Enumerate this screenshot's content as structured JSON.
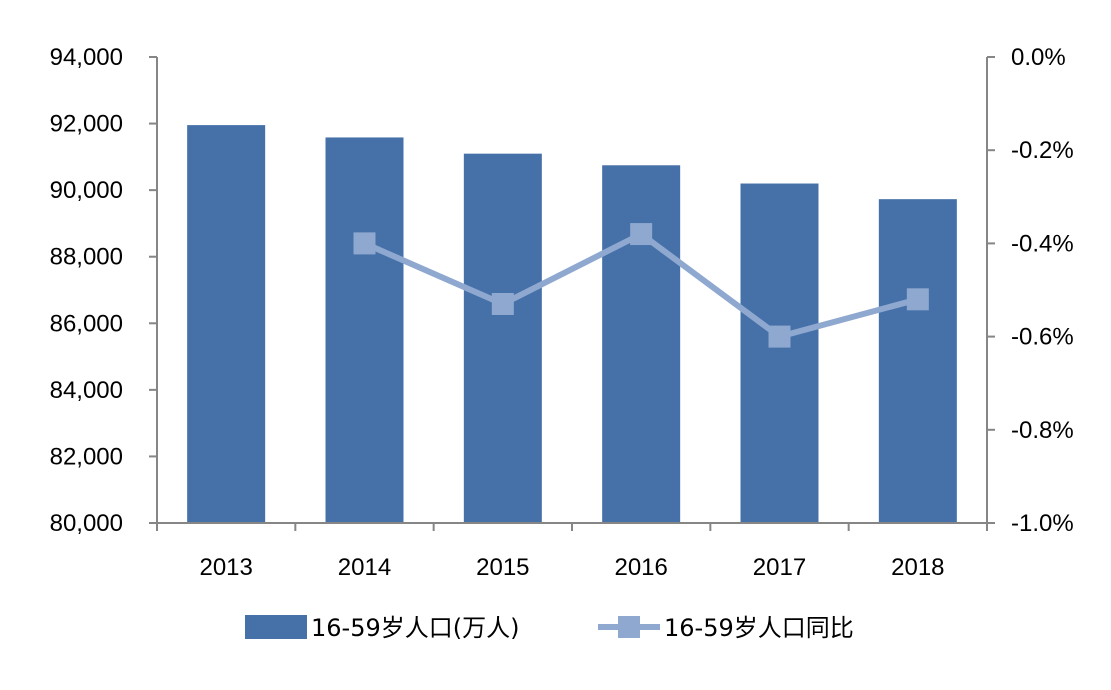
{
  "chart_data": {
    "type": "bar",
    "categories": [
      "2013",
      "2014",
      "2015",
      "2016",
      "2017",
      "2018"
    ],
    "series": [
      {
        "name": "16-59岁人口(万人)",
        "type": "bar",
        "axis": "left",
        "color": "#4571A8",
        "values": [
          91954,
          91583,
          91096,
          90747,
          90199,
          89729
        ]
      },
      {
        "name": "16-59岁人口同比",
        "type": "line",
        "axis": "right",
        "color": "#8FA8D0",
        "marker": "square",
        "values": [
          null,
          -0.4,
          -0.53,
          -0.38,
          -0.6,
          -0.52
        ]
      }
    ],
    "y_left": {
      "ylim": [
        80000,
        94000
      ],
      "ticks": [
        80000,
        82000,
        84000,
        86000,
        88000,
        90000,
        92000,
        94000
      ],
      "tick_labels": [
        "80,000",
        "82,000",
        "84,000",
        "86,000",
        "88,000",
        "90,000",
        "92,000",
        "94,000"
      ]
    },
    "y_right": {
      "ylim": [
        -1.0,
        0.0
      ],
      "ticks": [
        -1.0,
        -0.8,
        -0.6,
        -0.4,
        -0.2,
        0.0
      ],
      "tick_labels": [
        "-1.0%",
        "-0.8%",
        "-0.6%",
        "-0.4%",
        "-0.2%",
        "0.0%"
      ]
    },
    "grid": false,
    "legend_position": "bottom",
    "title": "",
    "xlabel": "",
    "ylabel": ""
  }
}
